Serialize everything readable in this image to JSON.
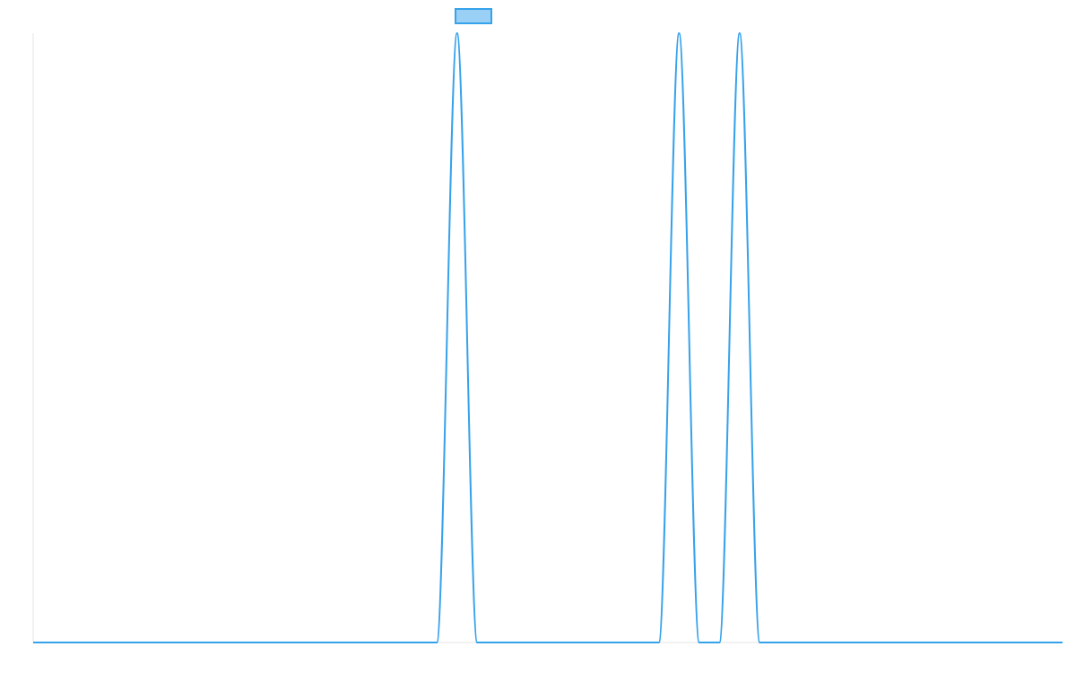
{
  "chart_data": {
    "type": "line",
    "title": "",
    "xlabel": "",
    "ylabel": "",
    "grid": false,
    "legend_position": "top-center",
    "xlim": [
      0,
      51
    ],
    "ylim": [
      0,
      1
    ],
    "x": [
      0,
      1,
      2,
      3,
      4,
      5,
      6,
      7,
      8,
      9,
      10,
      11,
      12,
      13,
      14,
      15,
      16,
      17,
      18,
      19,
      20,
      21,
      22,
      23,
      24,
      25,
      26,
      27,
      28,
      29,
      30,
      31,
      32,
      33,
      34,
      35,
      36,
      37,
      38,
      39,
      40,
      41,
      42,
      43,
      44,
      45,
      46,
      47,
      48,
      49,
      50,
      51
    ],
    "series": [
      {
        "name": "",
        "color": "#36a2eb",
        "fill": "#9ad0f5",
        "values": [
          0,
          0,
          0,
          0,
          0,
          0,
          0,
          0,
          0,
          0,
          0,
          0,
          0,
          0,
          0,
          0,
          0,
          0,
          0,
          0,
          0,
          1,
          0,
          0,
          0,
          0,
          0,
          0,
          0,
          0,
          0,
          0,
          1,
          0,
          0,
          1,
          0,
          0,
          0,
          0,
          0,
          0,
          0,
          0,
          0,
          0,
          0,
          0,
          0,
          0,
          0,
          0
        ]
      }
    ]
  }
}
